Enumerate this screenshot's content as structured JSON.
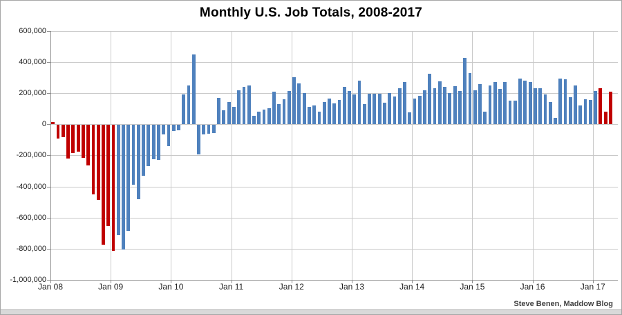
{
  "attribution": "Steve Benen, Maddow Blog",
  "chart_data": {
    "type": "bar",
    "title": "Monthly U.S. Job Totals, 2008-2017",
    "unit": "net monthly job change, thousands",
    "months_start": "Jan 2008",
    "months_end": "Apr 2017",
    "x_tick_labels": [
      "Jan 08",
      "Jan 09",
      "Jan 10",
      "Jan 11",
      "Jan 12",
      "Jan 13",
      "Jan 14",
      "Jan 15",
      "Jan 16",
      "Jan 17"
    ],
    "y_tick_labels": [
      "600,000",
      "400,000",
      "200,000",
      "0",
      "-200,000",
      "-400,000",
      "-600,000",
      "-800,000",
      "-1,000,000"
    ],
    "ylim_thousands": [
      -1000,
      600
    ],
    "y_gridline_step_thousands": 200,
    "grid": "on",
    "values_thousands": [
      15,
      -86,
      -80,
      -214,
      -182,
      -172,
      -210,
      -259,
      -445,
      -480,
      -770,
      -650,
      -810,
      -710,
      -800,
      -680,
      -385,
      -478,
      -327,
      -265,
      -220,
      -225,
      -60,
      -135,
      -40,
      -35,
      190,
      251,
      450,
      -190,
      -60,
      -55,
      -50,
      168,
      90,
      145,
      110,
      220,
      240,
      250,
      55,
      80,
      95,
      105,
      210,
      130,
      160,
      215,
      305,
      265,
      200,
      110,
      120,
      80,
      145,
      165,
      135,
      155,
      240,
      215,
      190,
      280,
      130,
      195,
      195,
      195,
      140,
      200,
      180,
      230,
      270,
      75,
      165,
      185,
      220,
      325,
      230,
      275,
      240,
      200,
      245,
      215,
      425,
      330,
      220,
      260,
      80,
      250,
      270,
      228,
      270,
      150,
      150,
      295,
      280,
      270,
      230,
      233,
      190,
      145,
      43,
      295,
      290,
      176,
      248,
      120,
      162,
      155,
      216,
      232,
      79,
      211
    ],
    "bar_colors": {
      "default_blue": "#4f81bd",
      "highlight_red": "#c00000"
    },
    "red_month_index_ranges": [
      [
        0,
        12
      ],
      [
        109,
        111
      ]
    ]
  }
}
